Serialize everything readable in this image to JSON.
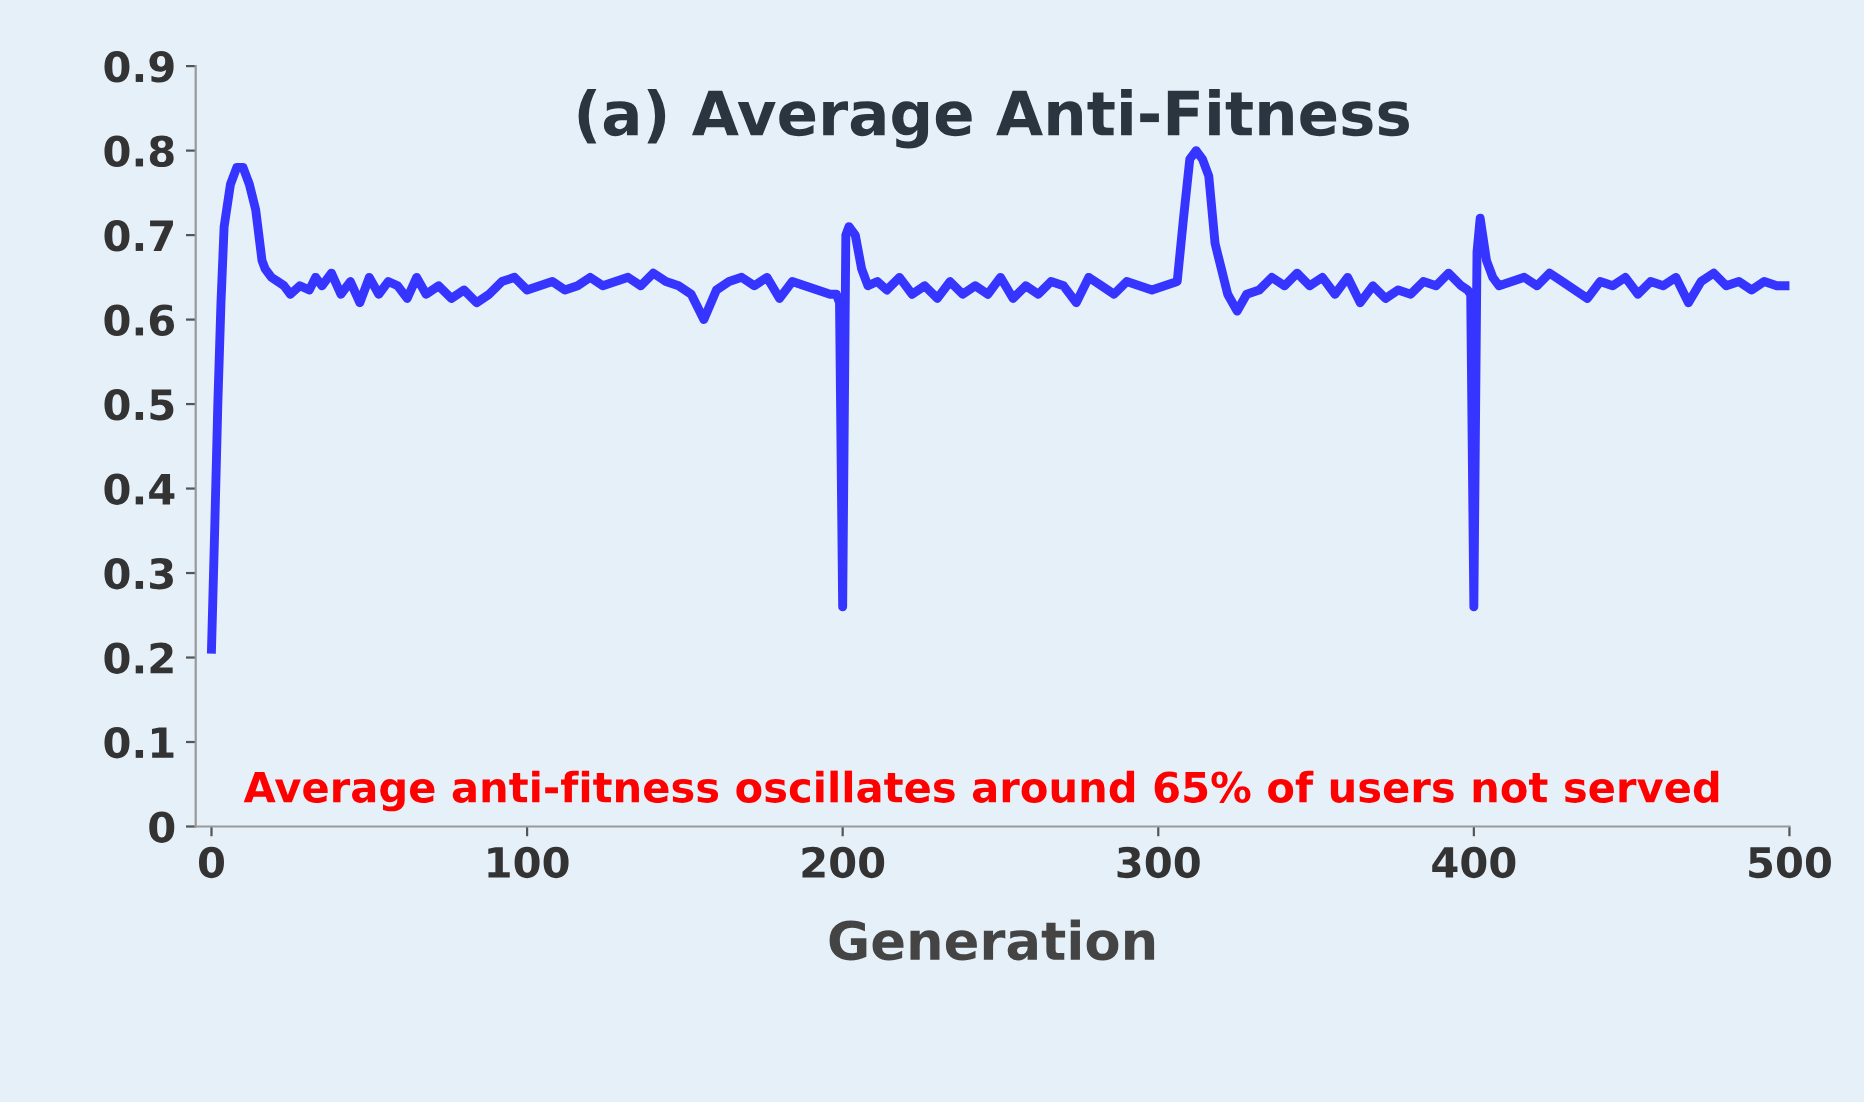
{
  "chart_data": {
    "type": "line",
    "title": "(a) Average Anti-Fitness",
    "xlabel": "Generation",
    "annotations": [
      "Average anti-fitness oscillates around 65% of users not served"
    ],
    "x": [
      0,
      1,
      2,
      3,
      4,
      6,
      8,
      10,
      12,
      14,
      16,
      17,
      19,
      21,
      23,
      25,
      28,
      31,
      33,
      35,
      38,
      41,
      44,
      47,
      50,
      53,
      56,
      59,
      62,
      65,
      68,
      72,
      76,
      80,
      84,
      88,
      92,
      96,
      100,
      104,
      108,
      112,
      116,
      120,
      124,
      128,
      132,
      136,
      140,
      144,
      148,
      152,
      156,
      160,
      164,
      168,
      172,
      176,
      180,
      184,
      188,
      192,
      196,
      198,
      199,
      200,
      201,
      202,
      204,
      206,
      208,
      211,
      214,
      218,
      222,
      226,
      230,
      234,
      238,
      242,
      246,
      250,
      254,
      258,
      262,
      266,
      270,
      274,
      278,
      282,
      286,
      290,
      294,
      298,
      302,
      306,
      308,
      310,
      312,
      314,
      316,
      318,
      320,
      322,
      325,
      328,
      332,
      336,
      340,
      344,
      348,
      352,
      356,
      360,
      364,
      368,
      372,
      376,
      380,
      384,
      388,
      392,
      396,
      398,
      399,
      400,
      401,
      402,
      404,
      406,
      408,
      412,
      416,
      420,
      424,
      428,
      432,
      436,
      440,
      444,
      448,
      452,
      456,
      460,
      464,
      468,
      472,
      476,
      480,
      484,
      488,
      492,
      496,
      499
    ],
    "series": [
      {
        "color": "#3535ff",
        "values": [
          0.21,
          0.35,
          0.5,
          0.62,
          0.71,
          0.76,
          0.78,
          0.78,
          0.76,
          0.73,
          0.67,
          0.66,
          0.65,
          0.645,
          0.64,
          0.63,
          0.64,
          0.635,
          0.65,
          0.64,
          0.655,
          0.63,
          0.645,
          0.62,
          0.65,
          0.63,
          0.645,
          0.64,
          0.625,
          0.65,
          0.63,
          0.64,
          0.625,
          0.635,
          0.62,
          0.63,
          0.645,
          0.65,
          0.635,
          0.64,
          0.645,
          0.635,
          0.64,
          0.65,
          0.64,
          0.645,
          0.65,
          0.64,
          0.655,
          0.645,
          0.64,
          0.63,
          0.6,
          0.635,
          0.645,
          0.65,
          0.64,
          0.65,
          0.625,
          0.645,
          0.64,
          0.635,
          0.63,
          0.63,
          0.62,
          0.26,
          0.7,
          0.71,
          0.7,
          0.66,
          0.64,
          0.645,
          0.635,
          0.65,
          0.63,
          0.64,
          0.625,
          0.645,
          0.63,
          0.64,
          0.63,
          0.65,
          0.625,
          0.64,
          0.63,
          0.645,
          0.64,
          0.62,
          0.65,
          0.64,
          0.63,
          0.645,
          0.64,
          0.635,
          0.64,
          0.645,
          0.72,
          0.79,
          0.8,
          0.79,
          0.77,
          0.69,
          0.66,
          0.63,
          0.61,
          0.63,
          0.635,
          0.65,
          0.64,
          0.655,
          0.64,
          0.65,
          0.63,
          0.65,
          0.62,
          0.64,
          0.625,
          0.635,
          0.63,
          0.645,
          0.64,
          0.655,
          0.64,
          0.635,
          0.63,
          0.26,
          0.68,
          0.72,
          0.67,
          0.65,
          0.64,
          0.645,
          0.65,
          0.64,
          0.655,
          0.645,
          0.635,
          0.625,
          0.645,
          0.64,
          0.65,
          0.63,
          0.645,
          0.64,
          0.65,
          0.62,
          0.645,
          0.655,
          0.64,
          0.645,
          0.635,
          0.645,
          0.64,
          0.64
        ]
      }
    ],
    "xlim": [
      -5,
      500
    ],
    "ylim": [
      0,
      0.9
    ],
    "xticks": [
      0,
      100,
      200,
      300,
      400,
      500
    ],
    "yticks": [
      0,
      {
        "value": 0.1,
        "label": "0.1"
      },
      {
        "value": 0.2,
        "label": "0.2"
      },
      {
        "value": 0.3,
        "label": "0.3"
      },
      {
        "value": 0.4,
        "label": "0.4"
      },
      {
        "value": 0.5,
        "label": "0.5"
      },
      {
        "value": 0.6,
        "label": "0.6"
      },
      {
        "value": 0.7,
        "label": "0.7"
      },
      {
        "value": 0.8,
        "label": "0.8"
      },
      {
        "value": 0.9,
        "label": "0.9"
      }
    ],
    "grid": false,
    "legend": false,
    "marker": "none",
    "line_style": "solid"
  }
}
